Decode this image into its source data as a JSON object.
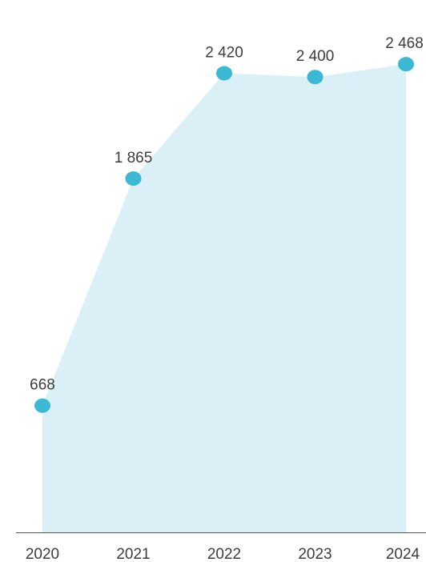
{
  "chart_data": {
    "type": "area",
    "categories": [
      "2020",
      "2021",
      "2022",
      "2023",
      "2024"
    ],
    "values": [
      668,
      1865,
      2420,
      2400,
      2468
    ],
    "value_labels": [
      "668",
      "1 865",
      "2 420",
      "2 400",
      "2 468"
    ],
    "title": "",
    "xlabel": "",
    "ylabel": "",
    "ylim": [
      0,
      2650
    ],
    "grid": false,
    "legend": "none",
    "colors": {
      "area_fill": "#daf0f6",
      "marker": "#3bb8d4",
      "axis": "#555555",
      "text": "#3d3d3d"
    }
  }
}
